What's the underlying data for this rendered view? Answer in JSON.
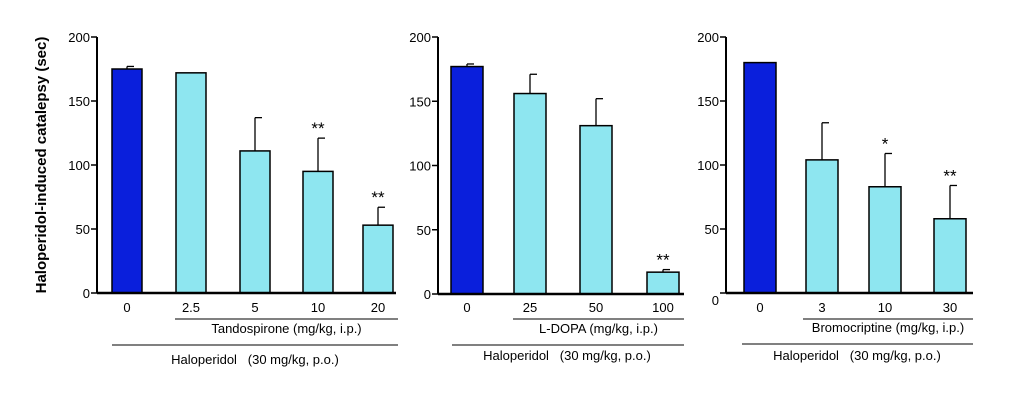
{
  "chart_data": [
    {
      "type": "bar",
      "ylabel": "Haloperidol-induced catalepsy (sec)",
      "ylim": [
        0,
        200
      ],
      "yticks": [
        "200",
        "150",
        "100",
        "50",
        "0"
      ],
      "categories": [
        "0",
        "2.5",
        "5",
        "10",
        "20"
      ],
      "values": [
        175,
        172,
        111,
        95,
        53
      ],
      "errors": [
        2,
        0,
        26,
        26,
        14
      ],
      "significance": [
        "",
        "",
        "",
        "**",
        "**"
      ],
      "bar_colors": [
        "#0a1fdc",
        "#8ee6f0",
        "#8ee6f0",
        "#8ee6f0",
        "#8ee6f0"
      ],
      "drug_label": "Tandospirone (mg/kg, i.p.)",
      "haloperidol_label": "Haloperidol   (30 mg/kg, p.o.)"
    },
    {
      "type": "bar",
      "ylabel": "",
      "ylim": [
        0,
        200
      ],
      "yticks": [
        "200",
        "150",
        "100",
        "50",
        "0"
      ],
      "categories": [
        "0",
        "25",
        "50",
        "100"
      ],
      "values": [
        177,
        156,
        131,
        17
      ],
      "errors": [
        2,
        15,
        21,
        2
      ],
      "significance": [
        "",
        "",
        "",
        "**"
      ],
      "bar_colors": [
        "#0a1fdc",
        "#8ee6f0",
        "#8ee6f0",
        "#8ee6f0"
      ],
      "drug_label": "L-DOPA (mg/kg, i.p.)",
      "haloperidol_label": "Haloperidol   (30 mg/kg, p.o.)"
    },
    {
      "type": "bar",
      "ylabel": "",
      "ylim": [
        0,
        200
      ],
      "yticks": [
        "200",
        "150",
        "100",
        "50",
        "0"
      ],
      "categories": [
        "0",
        "3",
        "10",
        "30"
      ],
      "values": [
        180,
        104,
        83,
        58
      ],
      "errors": [
        0,
        29,
        26,
        26
      ],
      "significance": [
        "",
        "",
        "*",
        "**"
      ],
      "bar_colors": [
        "#0a1fdc",
        "#8ee6f0",
        "#8ee6f0",
        "#8ee6f0"
      ],
      "drug_label": "Bromocriptine (mg/kg, i.p.)",
      "haloperidol_label": "Haloperidol   (30 mg/kg, p.o.)"
    }
  ]
}
